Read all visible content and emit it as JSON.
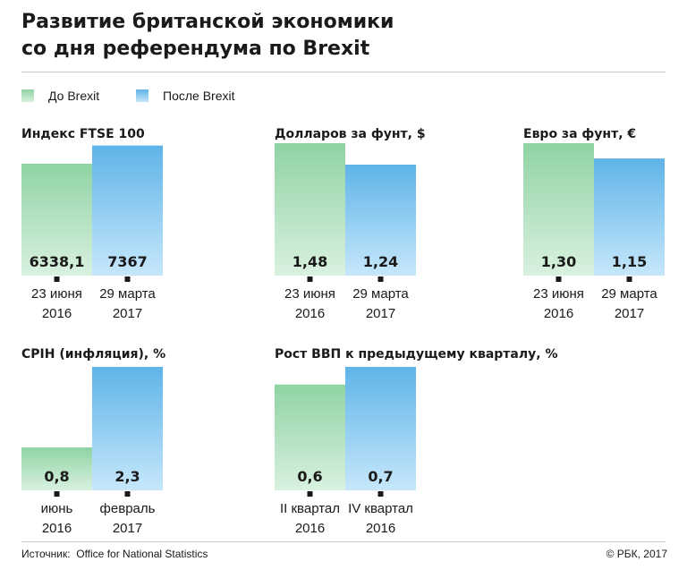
{
  "title_lines": [
    "Развитие британской экономики",
    "со дня референдума по Brexit"
  ],
  "legend": [
    {
      "label": "До Brexit",
      "color": "#8fd3a4"
    },
    {
      "label": "После Brexit",
      "color": "#5fb4e8"
    }
  ],
  "colors": {
    "before_top": "#8fd3a4",
    "before_bottom": "#d9f1df",
    "after_top": "#5fb4e8",
    "after_bottom": "#c6e7fb",
    "marker": "#1a1a1a"
  },
  "source": {
    "label": "Источник:",
    "value": "Office for National Statistics"
  },
  "copyright": "© РБК, 2017",
  "chart_data": [
    {
      "type": "bar",
      "title": "Индекс FTSE 100",
      "series": [
        "До Brexit",
        "После Brexit"
      ],
      "values": [
        6338.1,
        7367
      ],
      "value_labels": [
        "6338,1",
        "7367"
      ],
      "category_lines": [
        [
          "23 июня",
          "2016"
        ],
        [
          "29 марта",
          "2017"
        ]
      ],
      "ylim": [
        0,
        7500
      ]
    },
    {
      "type": "bar",
      "title": "Долларов за фунт, $",
      "series": [
        "До Brexit",
        "После Brexit"
      ],
      "values": [
        1.48,
        1.24
      ],
      "value_labels": [
        "1,48",
        "1,24"
      ],
      "category_lines": [
        [
          "23 июня",
          "2016"
        ],
        [
          "29 марта",
          "2017"
        ]
      ],
      "ylim": [
        0,
        1.48
      ]
    },
    {
      "type": "bar",
      "title": "Евро за фунт, €",
      "series": [
        "До Brexit",
        "После Brexit"
      ],
      "values": [
        1.3,
        1.15
      ],
      "value_labels": [
        "1,30",
        "1,15"
      ],
      "category_lines": [
        [
          "23 июня",
          "2016"
        ],
        [
          "29 марта",
          "2017"
        ]
      ],
      "ylim": [
        0,
        1.3
      ]
    },
    {
      "type": "bar",
      "title": "CPIH (инфляция), %",
      "series": [
        "До Brexit",
        "После Brexit"
      ],
      "values": [
        0.8,
        2.3
      ],
      "value_labels": [
        "0,8",
        "2,3"
      ],
      "category_lines": [
        [
          "июнь",
          "2016"
        ],
        [
          "февраль",
          "2017"
        ]
      ],
      "ylim": [
        0,
        2.3
      ]
    },
    {
      "type": "bar",
      "title": "Рост ВВП к предыдущему кварталу, %",
      "series": [
        "До Brexit",
        "После Brexit"
      ],
      "values": [
        0.6,
        0.7
      ],
      "value_labels": [
        "0,6",
        "0,7"
      ],
      "category_lines": [
        [
          "II квартал",
          "2016"
        ],
        [
          "IV квартал",
          "2016"
        ]
      ],
      "ylim": [
        0,
        0.7
      ]
    }
  ]
}
